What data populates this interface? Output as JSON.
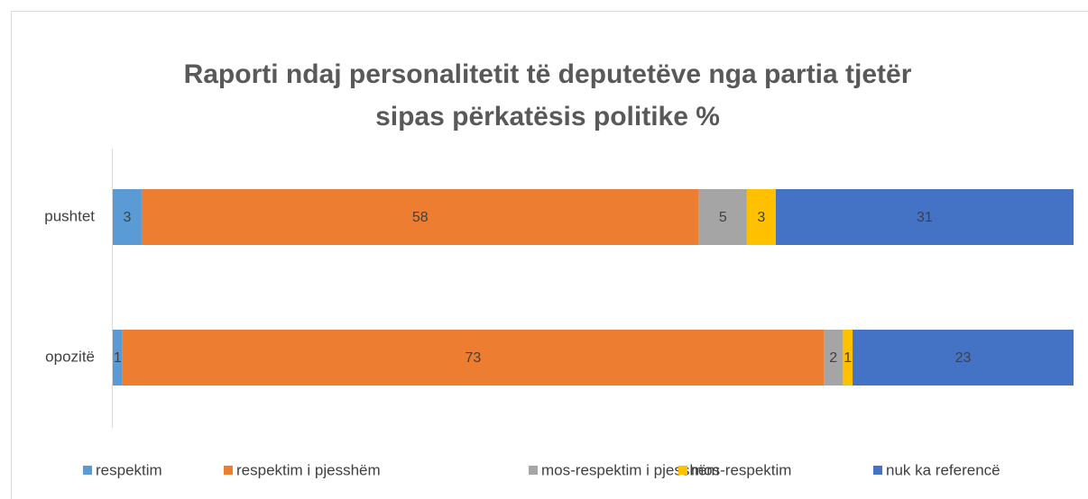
{
  "chart_data": {
    "type": "stacked_bar_horizontal",
    "title": [
      "Raporti ndaj personalitetit të deputetëve nga partia tjetër",
      "sipas përkatësis politike %"
    ],
    "categories": [
      "pushtet",
      "opozitë"
    ],
    "series": [
      {
        "name": "respektim",
        "color": "#5b9bd5",
        "values": [
          3,
          1
        ]
      },
      {
        "name": "respektim i pjesshëm",
        "color": "#ed7d31",
        "values": [
          58,
          73
        ]
      },
      {
        "name": "mos-respektim i pjesshëm",
        "color": "#a5a5a5",
        "values": [
          5,
          2
        ]
      },
      {
        "name": "mos-respektim",
        "color": "#ffc000",
        "values": [
          3,
          1
        ]
      },
      {
        "name": "nuk ka referencë",
        "color": "#4472c4",
        "values": [
          31,
          23
        ]
      }
    ],
    "xlim": [
      0,
      100
    ],
    "legend": "bottom"
  }
}
